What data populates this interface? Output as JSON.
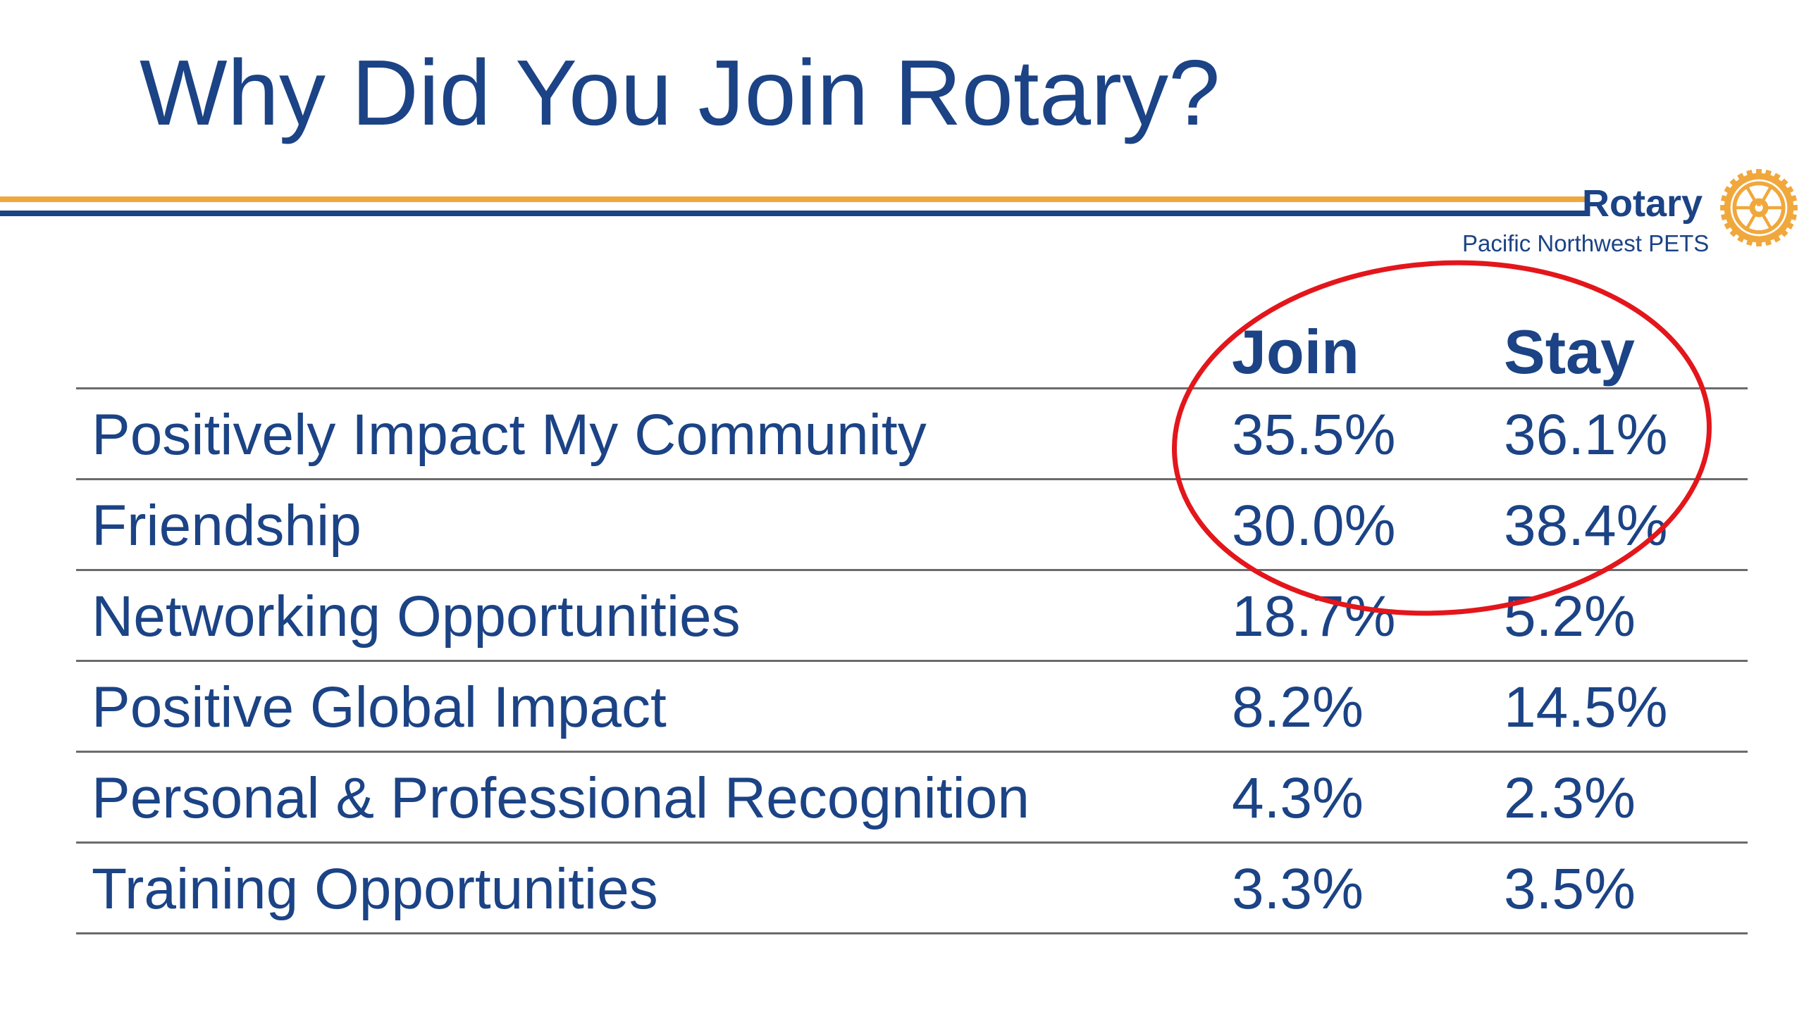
{
  "slide": {
    "title": "Why Did You Join Rotary?",
    "logo": {
      "wordmark": "Rotary",
      "subtitle": "Pacific Northwest PETS",
      "icon": "rotary-wheel-icon"
    },
    "colors": {
      "primary_blue": "#1b4385",
      "gold": "#f0a83c",
      "highlight_red": "#e3161b",
      "rule_gray": "#6b6b6b"
    }
  },
  "table": {
    "headers": {
      "label": "",
      "join": "Join",
      "stay": "Stay"
    },
    "rows": [
      {
        "label": "Positively Impact My Community",
        "join": "35.5%",
        "stay": "36.1%"
      },
      {
        "label": "Friendship",
        "join": "30.0%",
        "stay": "38.4%"
      },
      {
        "label": "Networking Opportunities",
        "join": "18.7%",
        "stay": "5.2%"
      },
      {
        "label": "Positive Global Impact",
        "join": "8.2%",
        "stay": "14.5%"
      },
      {
        "label": "Personal & Professional Recognition",
        "join": "4.3%",
        "stay": "2.3%"
      },
      {
        "label": "Training Opportunities",
        "join": "3.3%",
        "stay": "3.5%"
      }
    ]
  }
}
